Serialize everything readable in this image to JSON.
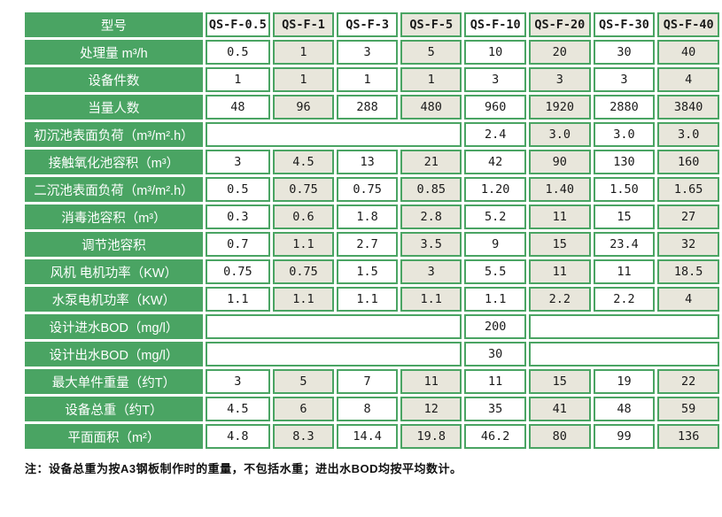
{
  "colors": {
    "green": "#4aa463",
    "beige": "#e8e6db",
    "cell_border": "#4aa463",
    "data_text": "#1a1a1a",
    "label_text": "#ffffff"
  },
  "table": {
    "header_label": "型号",
    "models": [
      "QS-F-0.5",
      "QS-F-1",
      "QS-F-3",
      "QS-F-5",
      "QS-F-10",
      "QS-F-20",
      "QS-F-30",
      "QS-F-40"
    ],
    "rows": [
      {
        "label": "处理量 m³/h",
        "cells": [
          "0.5",
          "1",
          "3",
          "5",
          "10",
          "20",
          "30",
          "40"
        ]
      },
      {
        "label": "设备件数",
        "cells": [
          "1",
          "1",
          "1",
          "1",
          "3",
          "3",
          "3",
          "4"
        ]
      },
      {
        "label": "当量人数",
        "cells": [
          "48",
          "96",
          "288",
          "480",
          "960",
          "1920",
          "2880",
          "3840"
        ]
      },
      {
        "label": "初沉池表面负荷（m³/m².h）",
        "cells": [
          {
            "span": 4,
            "text": ""
          },
          "2.4",
          "3.0",
          "3.0",
          "3.0"
        ]
      },
      {
        "label": "接触氧化池容积（m³）",
        "cells": [
          "3",
          "4.5",
          "13",
          "21",
          "42",
          "90",
          "130",
          "160"
        ]
      },
      {
        "label": "二沉池表面负荷（m³/m².h）",
        "cells": [
          "0.5",
          "0.75",
          "0.75",
          "0.85",
          "1.20",
          "1.40",
          "1.50",
          "1.65"
        ]
      },
      {
        "label": "消毒池容积（m³）",
        "cells": [
          "0.3",
          "0.6",
          "1.8",
          "2.8",
          "5.2",
          "11",
          "15",
          "27"
        ]
      },
      {
        "label": "调节池容积",
        "cells": [
          "0.7",
          "1.1",
          "2.7",
          "3.5",
          "9",
          "15",
          "23.4",
          "32"
        ]
      },
      {
        "label": "风机 电机功率（KW）",
        "cells": [
          "0.75",
          "0.75",
          "1.5",
          "3",
          "5.5",
          "11",
          "11",
          "18.5"
        ]
      },
      {
        "label": "水泵电机功率（KW）",
        "cells": [
          "1.1",
          "1.1",
          "1.1",
          "1.1",
          "1.1",
          "2.2",
          "2.2",
          "4"
        ]
      },
      {
        "label": "设计进水BOD（mg/l）",
        "cells": [
          {
            "span": 4,
            "text": ""
          },
          "200",
          {
            "span": 3,
            "text": ""
          }
        ]
      },
      {
        "label": "设计出水BOD（mg/l）",
        "cells": [
          {
            "span": 4,
            "text": ""
          },
          "30",
          {
            "span": 3,
            "text": ""
          }
        ]
      },
      {
        "label": "最大单件重量（约T）",
        "cells": [
          "3",
          "5",
          "7",
          "11",
          "11",
          "15",
          "19",
          "22"
        ]
      },
      {
        "label": "设备总重（约T）",
        "cells": [
          "4.5",
          "6",
          "8",
          "12",
          "35",
          "41",
          "48",
          "59"
        ]
      },
      {
        "label": "平面面积（m²）",
        "cells": [
          "4.8",
          "8.3",
          "14.4",
          "19.8",
          "46.2",
          "80",
          "99",
          "136"
        ]
      }
    ]
  },
  "footnote": "注：设备总重为按A3钢板制作时的重量，不包括水重；进出水BOD均按平均数计。"
}
